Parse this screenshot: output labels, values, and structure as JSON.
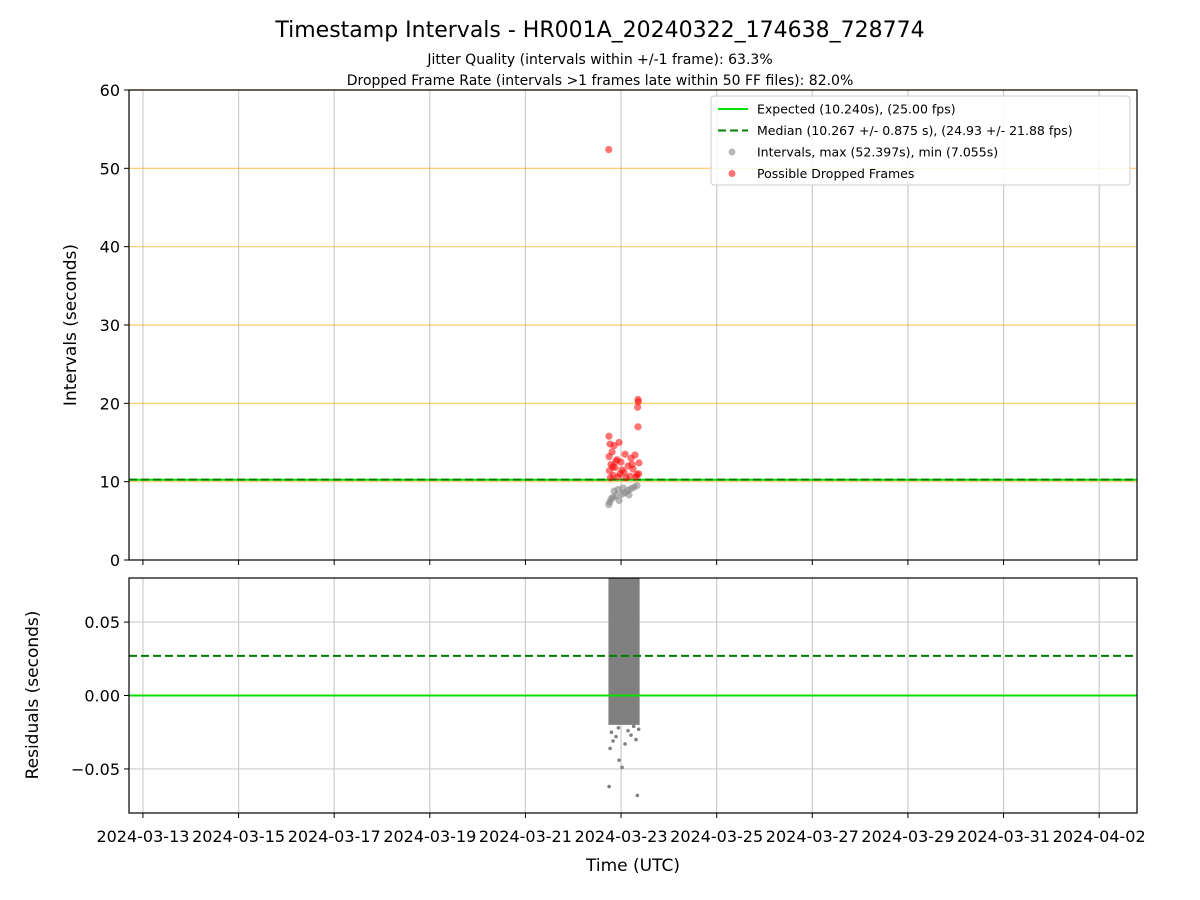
{
  "chart_data": [
    {
      "type": "scatter",
      "title": "Timestamp Intervals - HR001A_20240322_174638_728774",
      "subtitles": [
        "Jitter Quality (intervals within +/-1 frame): 63.3%",
        "Dropped Frame Rate (intervals >1 frames late within 50 FF files): 82.0%"
      ],
      "xlabel": "",
      "ylabel": "Intervals (seconds)",
      "ylim": [
        0,
        60
      ],
      "yticks": [
        "0",
        "10",
        "20",
        "30",
        "40",
        "50",
        "60"
      ],
      "xlim": [
        "2024-03-12T17:00",
        "2024-04-02T19:00"
      ],
      "xticks": [
        "2024-03-13",
        "2024-03-15",
        "2024-03-17",
        "2024-03-19",
        "2024-03-21",
        "2024-03-23",
        "2024-03-25",
        "2024-03-27",
        "2024-03-29",
        "2024-03-31",
        "2024-04-02"
      ],
      "grid": "vertical major gridlines; horizontal orange lines at 10 to 60",
      "horizontal_lines": [
        {
          "name": "Expected (10.240s), (25.00 fps)",
          "y": 10.24,
          "color": "#00e000",
          "style": "solid"
        },
        {
          "name": "Median (10.267 +/- 0.875 s), (24.93 +/- 21.88 fps)",
          "y": 10.267,
          "color": "#008000",
          "style": "dashed"
        }
      ],
      "threshold_lines": {
        "y": [
          10,
          20,
          30,
          40,
          50,
          60
        ],
        "color": "#ffa500"
      },
      "series": [
        {
          "name": "Intervals, max (52.397s), min (7.055s)",
          "color": "#808080",
          "points": [
            {
              "x": "2024-03-22T17:50",
              "y": 7.06
            },
            {
              "x": "2024-03-22T18:20",
              "y": 7.4
            },
            {
              "x": "2024-03-22T19:00",
              "y": 7.8
            },
            {
              "x": "2024-03-22T20:00",
              "y": 8.0
            },
            {
              "x": "2024-03-22T21:30",
              "y": 8.2
            },
            {
              "x": "2024-03-22T23:00",
              "y": 7.6
            },
            {
              "x": "2024-03-23T00:30",
              "y": 8.4
            },
            {
              "x": "2024-03-23T02:00",
              "y": 8.6
            },
            {
              "x": "2024-03-23T03:30",
              "y": 8.9
            },
            {
              "x": "2024-03-23T05:00",
              "y": 9.1
            },
            {
              "x": "2024-03-23T06:30",
              "y": 9.3
            },
            {
              "x": "2024-03-23T08:00",
              "y": 9.5
            },
            {
              "x": "2024-03-22T20:30",
              "y": 8.8
            },
            {
              "x": "2024-03-22T22:30",
              "y": 9.0
            },
            {
              "x": "2024-03-23T01:00",
              "y": 9.2
            },
            {
              "x": "2024-03-23T04:00",
              "y": 8.3
            }
          ]
        },
        {
          "name": "Possible Dropped Frames",
          "color": "#ff0000",
          "points": [
            {
              "x": "2024-03-22T17:50",
              "y": 52.4
            },
            {
              "x": "2024-03-23T08:30",
              "y": 20.5
            },
            {
              "x": "2024-03-23T08:40",
              "y": 20.2
            },
            {
              "x": "2024-03-23T08:20",
              "y": 19.5
            },
            {
              "x": "2024-03-23T08:30",
              "y": 17.0
            },
            {
              "x": "2024-03-22T17:55",
              "y": 15.8
            },
            {
              "x": "2024-03-22T23:00",
              "y": 15.0
            },
            {
              "x": "2024-03-22T18:30",
              "y": 14.8
            },
            {
              "x": "2024-03-22T20:30",
              "y": 14.6
            },
            {
              "x": "2024-03-22T19:30",
              "y": 13.8
            },
            {
              "x": "2024-03-23T02:00",
              "y": 13.5
            },
            {
              "x": "2024-03-23T07:00",
              "y": 13.4
            },
            {
              "x": "2024-03-22T18:00",
              "y": 13.2
            },
            {
              "x": "2024-03-23T05:00",
              "y": 13.0
            },
            {
              "x": "2024-03-22T22:00",
              "y": 12.8
            },
            {
              "x": "2024-03-23T00:00",
              "y": 12.5
            },
            {
              "x": "2024-03-23T09:00",
              "y": 12.4
            },
            {
              "x": "2024-03-22T19:00",
              "y": 12.2
            },
            {
              "x": "2024-03-23T03:30",
              "y": 12.0
            },
            {
              "x": "2024-03-22T21:00",
              "y": 11.8
            },
            {
              "x": "2024-03-23T06:00",
              "y": 11.6
            },
            {
              "x": "2024-03-22T18:10",
              "y": 11.4
            },
            {
              "x": "2024-03-23T01:30",
              "y": 11.2
            },
            {
              "x": "2024-03-22T23:30",
              "y": 11.0
            },
            {
              "x": "2024-03-23T08:00",
              "y": 10.9
            },
            {
              "x": "2024-03-22T20:00",
              "y": 10.8
            },
            {
              "x": "2024-03-23T04:30",
              "y": 10.7
            },
            {
              "x": "2024-03-22T22:30",
              "y": 10.6
            },
            {
              "x": "2024-03-23T02:30",
              "y": 10.5
            },
            {
              "x": "2024-03-22T18:40",
              "y": 10.5
            },
            {
              "x": "2024-03-23T07:30",
              "y": 10.6
            },
            {
              "x": "2024-03-23T00:30",
              "y": 11.5
            },
            {
              "x": "2024-03-22T21:30",
              "y": 12.6
            },
            {
              "x": "2024-03-23T05:30",
              "y": 12.2
            },
            {
              "x": "2024-03-23T08:50",
              "y": 11.0
            },
            {
              "x": "2024-03-22T19:50",
              "y": 11.9
            }
          ]
        }
      ],
      "legend": {
        "position": "top-right",
        "entries": [
          {
            "label": "Expected (10.240s), (25.00 fps)",
            "color": "#00e000",
            "kind": "line-solid"
          },
          {
            "label": "Median (10.267 +/- 0.875 s), (24.93 +/- 21.88 fps)",
            "color": "#008000",
            "kind": "line-dashed"
          },
          {
            "label": "Intervals, max (52.397s), min (7.055s)",
            "color": "#808080",
            "kind": "marker"
          },
          {
            "label": "Possible Dropped Frames",
            "color": "#ff0000",
            "kind": "marker"
          }
        ]
      }
    },
    {
      "type": "scatter",
      "xlabel": "Time (UTC)",
      "ylabel": "Residuals (seconds)",
      "ylim": [
        -0.08,
        0.08
      ],
      "yticks": [
        "−0.05",
        "0.00",
        "0.05"
      ],
      "ytick_values": [
        -0.05,
        0,
        0.05
      ],
      "xlim": [
        "2024-03-12T17:00",
        "2024-04-02T19:00"
      ],
      "xticks": [
        "2024-03-13",
        "2024-03-15",
        "2024-03-17",
        "2024-03-19",
        "2024-03-21",
        "2024-03-23",
        "2024-03-25",
        "2024-03-27",
        "2024-03-29",
        "2024-03-31",
        "2024-04-02"
      ],
      "grid": "major gridlines on",
      "horizontal_lines": [
        {
          "y": 0.0,
          "color": "#00e000",
          "style": "solid"
        },
        {
          "y": 0.027,
          "color": "#008000",
          "style": "dashed"
        }
      ],
      "series": [
        {
          "color": "#808080",
          "band": {
            "x_from": "2024-03-22T17:40",
            "x_to": "2024-03-23T09:20",
            "y_from": -0.02,
            "y_to": 0.08
          },
          "points": [
            {
              "x": "2024-03-22T18:00",
              "y": -0.062
            },
            {
              "x": "2024-03-23T08:10",
              "y": -0.068
            },
            {
              "x": "2024-03-23T00:30",
              "y": -0.049
            },
            {
              "x": "2024-03-22T23:00",
              "y": -0.044
            },
            {
              "x": "2024-03-22T18:30",
              "y": -0.036
            },
            {
              "x": "2024-03-23T02:00",
              "y": -0.033
            },
            {
              "x": "2024-03-22T20:00",
              "y": -0.031
            },
            {
              "x": "2024-03-23T07:30",
              "y": -0.03
            },
            {
              "x": "2024-03-22T21:30",
              "y": -0.028
            },
            {
              "x": "2024-03-23T05:00",
              "y": -0.027
            },
            {
              "x": "2024-03-22T19:10",
              "y": -0.025
            },
            {
              "x": "2024-03-23T03:30",
              "y": -0.024
            },
            {
              "x": "2024-03-23T08:50",
              "y": -0.023
            },
            {
              "x": "2024-03-22T22:40",
              "y": -0.022
            },
            {
              "x": "2024-03-23T06:20",
              "y": -0.021
            }
          ]
        }
      ]
    }
  ]
}
